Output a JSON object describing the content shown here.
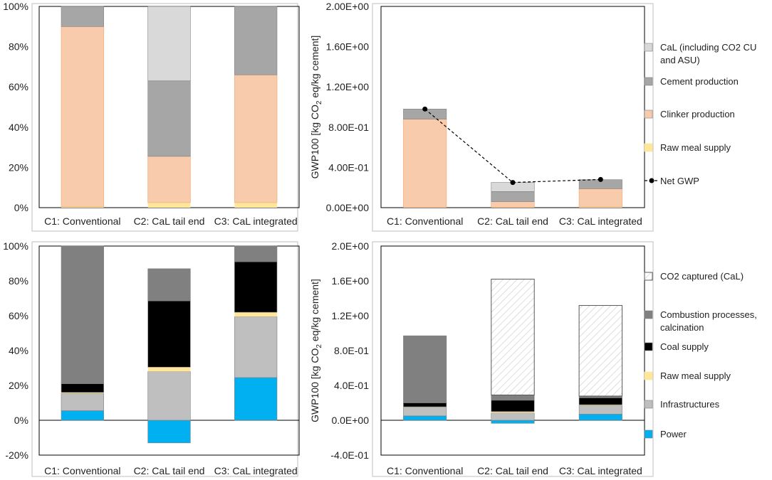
{
  "chart_data": [
    {
      "id": "top-left",
      "type": "bar",
      "stacked": true,
      "categories": [
        "C1: Conventional",
        "C2: CaL tail end",
        "C3: CaL integrated"
      ],
      "ylim": [
        0,
        100
      ],
      "yticks": [
        "0%",
        "20%",
        "40%",
        "60%",
        "80%",
        "100%"
      ],
      "series": [
        {
          "name": "Raw meal supply",
          "values": [
            0.5,
            2.5,
            2.5
          ],
          "color": "#FFE699"
        },
        {
          "name": "Clinker production",
          "values": [
            89.5,
            23.0,
            63.5
          ],
          "color": "#F8CBAD"
        },
        {
          "name": "Cement production",
          "values": [
            10.0,
            37.5,
            34.0
          ],
          "color": "#A6A6A6"
        },
        {
          "name": "CaL (including CO2 CU and ASU)",
          "values": [
            0,
            37.0,
            0
          ],
          "color": "#D9D9D9"
        }
      ]
    },
    {
      "id": "top-right",
      "type": "bar",
      "stacked": true,
      "categories": [
        "C1: Conventional",
        "C2: CaL tail end",
        "C3: CaL integrated"
      ],
      "ylabel": "GWP100 [kg CO₂ eq/kg cement]",
      "ylim": [
        0,
        2.0
      ],
      "yticks": [
        "0.00E+00",
        "4.00E-01",
        "8.00E-01",
        "1.20E+00",
        "1.60E+00",
        "2.00E+00"
      ],
      "series": [
        {
          "name": "Raw meal supply",
          "values": [
            0.005,
            0.005,
            0.008
          ],
          "color": "#FFE699"
        },
        {
          "name": "Clinker production",
          "values": [
            0.875,
            0.055,
            0.18
          ],
          "color": "#F8CBAD"
        },
        {
          "name": "Cement production",
          "values": [
            0.1,
            0.1,
            0.09
          ],
          "color": "#A6A6A6"
        },
        {
          "name": "CaL (including CO2 CU and ASU)",
          "values": [
            0,
            0.09,
            0
          ],
          "color": "#D9D9D9"
        }
      ],
      "net_gwp": {
        "name": "Net GWP",
        "values": [
          0.98,
          0.25,
          0.28
        ]
      },
      "legend": [
        {
          "label": "CaL (including CO2 CU",
          "label2": "and ASU)",
          "kind": "box",
          "color": "#D9D9D9"
        },
        {
          "label": "Cement production",
          "kind": "box",
          "color": "#A6A6A6"
        },
        {
          "label": "Clinker production",
          "kind": "box",
          "color": "#F8CBAD"
        },
        {
          "label": "Raw meal supply",
          "kind": "box",
          "color": "#FFE699"
        },
        {
          "label": "Net GWP",
          "kind": "line"
        }
      ]
    },
    {
      "id": "bottom-left",
      "type": "bar",
      "stacked": true,
      "categories": [
        "C1: Conventional",
        "C2: CaL tail end",
        "C3: CaL integrated"
      ],
      "ylim": [
        -20,
        100
      ],
      "yticks": [
        "-20%",
        "0%",
        "20%",
        "40%",
        "60%",
        "80%",
        "100%"
      ],
      "series": [
        {
          "name": "Power",
          "values": [
            5.5,
            -13.0,
            24.5
          ],
          "color": "#00B0F0"
        },
        {
          "name": "Infrastructures",
          "values": [
            10.0,
            28.0,
            35.0
          ],
          "color": "#BFBFBF"
        },
        {
          "name": "Raw meal supply",
          "values": [
            0.5,
            2.5,
            2.5
          ],
          "color": "#FFE699"
        },
        {
          "name": "Coal supply",
          "values": [
            5.0,
            38.0,
            29.0
          ],
          "color": "#000000"
        },
        {
          "name": "Combustion processes, calcination",
          "values": [
            79.0,
            18.5,
            9.0
          ],
          "color": "#808080"
        }
      ]
    },
    {
      "id": "bottom-right",
      "type": "bar",
      "stacked": true,
      "categories": [
        "C1: Conventional",
        "C2: CaL tail end",
        "C3: CaL integrated"
      ],
      "ylabel": "GWP100 [kg CO₂ eq/kg cement]",
      "ylim": [
        -0.4,
        2.0
      ],
      "yticks": [
        "-4.0E-01",
        "0.0E+00",
        "4.0E-01",
        "8.0E-01",
        "1.2E+00",
        "1.6E+00",
        "2.0E+00"
      ],
      "series": [
        {
          "name": "Power",
          "values": [
            0.05,
            -0.035,
            0.07
          ],
          "color": "#00B0F0"
        },
        {
          "name": "Infrastructures",
          "values": [
            0.1,
            0.085,
            0.1
          ],
          "color": "#BFBFBF"
        },
        {
          "name": "Raw meal supply",
          "values": [
            0.005,
            0.015,
            0.008
          ],
          "color": "#FFE699"
        },
        {
          "name": "Coal supply",
          "values": [
            0.045,
            0.13,
            0.08
          ],
          "color": "#000000"
        },
        {
          "name": "Combustion processes, calcination",
          "values": [
            0.77,
            0.06,
            0.02
          ],
          "color": "#808080"
        },
        {
          "name": "CO2 captured (CaL)",
          "values": [
            0,
            1.33,
            1.04
          ],
          "color": "#FFFFFF"
        }
      ],
      "legend": [
        {
          "label": "CO2 captured (CaL)",
          "kind": "hatch"
        },
        {
          "label": "Combustion processes,",
          "label2": "calcination",
          "kind": "box",
          "color": "#808080"
        },
        {
          "label": "Coal supply",
          "kind": "box",
          "color": "#000000"
        },
        {
          "label": "Raw meal supply",
          "kind": "box",
          "color": "#FFE699"
        },
        {
          "label": "Infrastructures",
          "kind": "box",
          "color": "#BFBFBF"
        },
        {
          "label": "Power",
          "kind": "box",
          "color": "#00B0F0"
        }
      ]
    }
  ]
}
